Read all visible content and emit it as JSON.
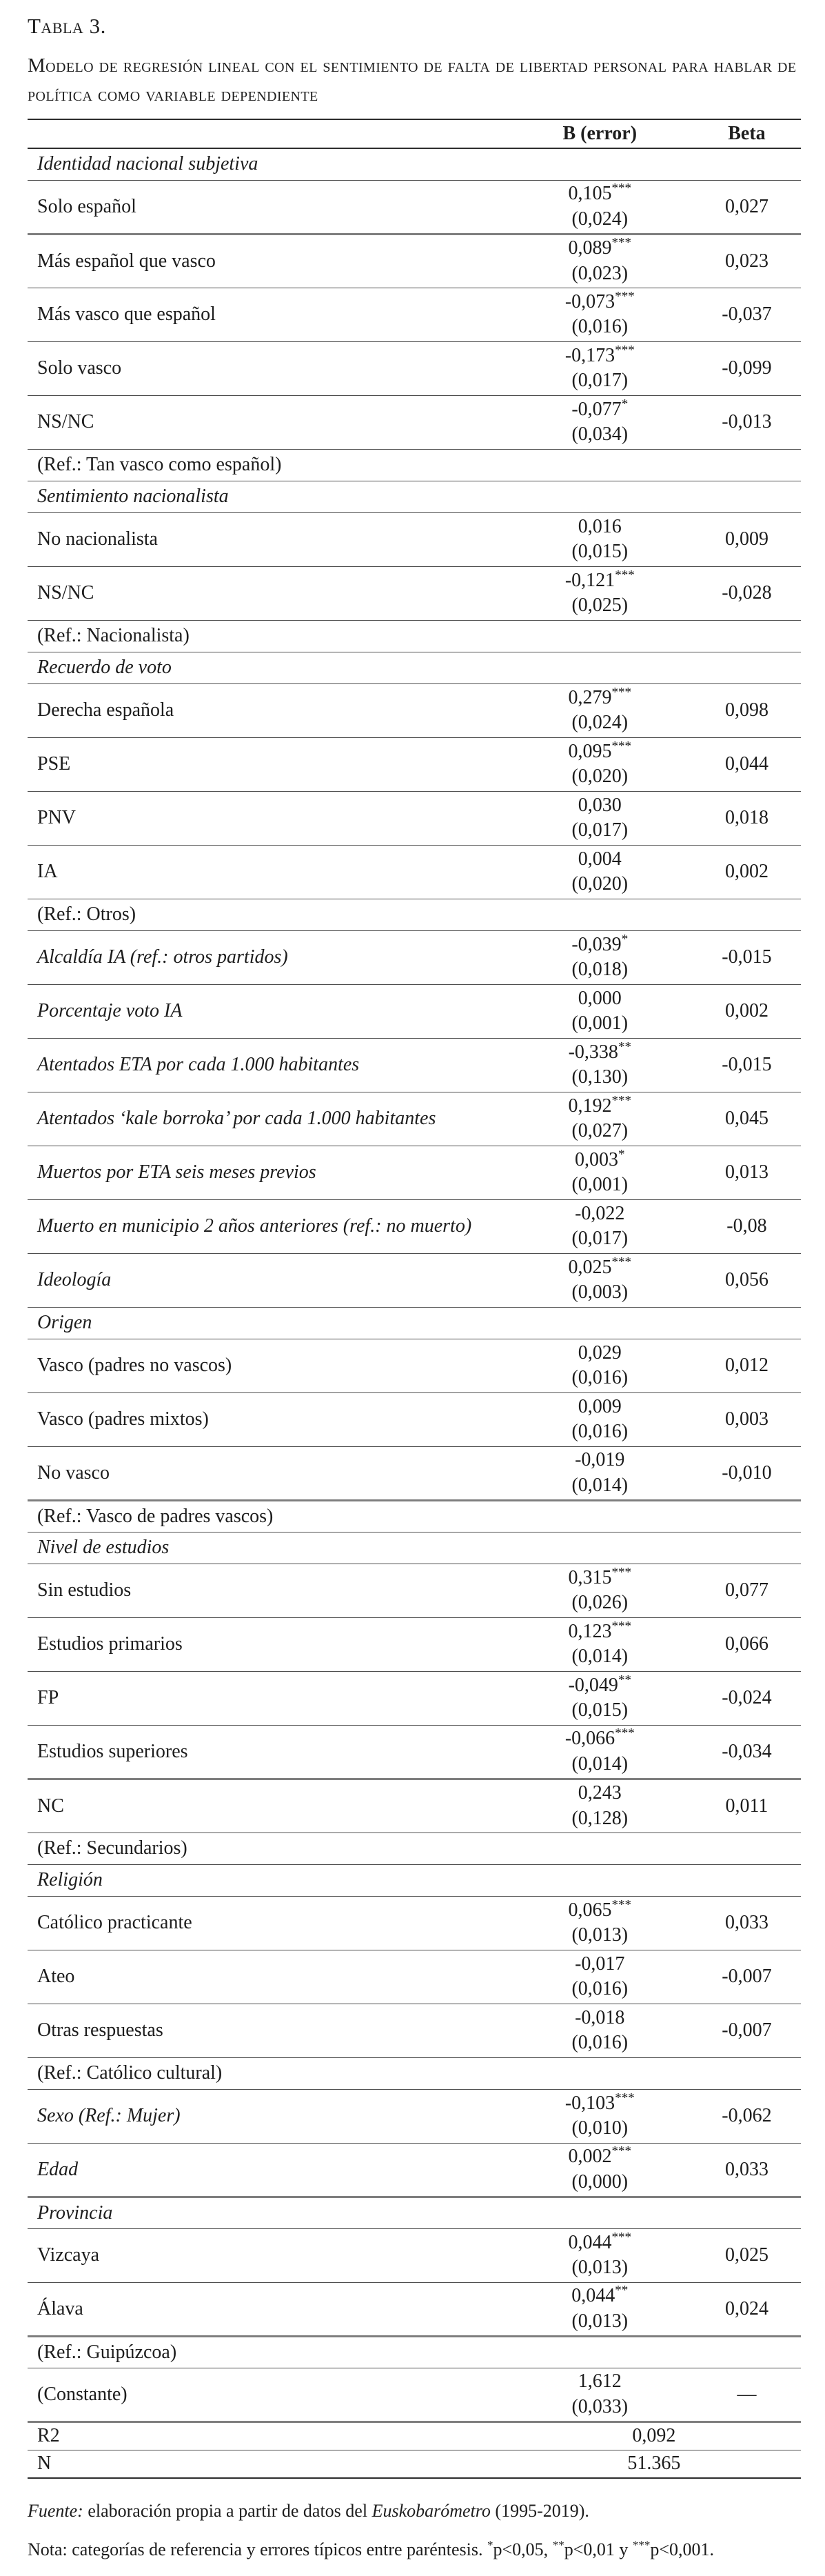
{
  "title": "Tabla 3.",
  "subtitle": "Modelo de regresión lineal con el sentimiento de falta de libertad personal para hablar de política como variable dependiente",
  "columns": {
    "b": "B (error)",
    "beta": "Beta"
  },
  "rows": [
    {
      "type": "section",
      "label": "Identidad nacional subjetiva"
    },
    {
      "type": "data",
      "thick": true,
      "label": "Solo español",
      "b": "0,105",
      "stars": "***",
      "err": "(0,024)",
      "beta": "0,027"
    },
    {
      "type": "data",
      "label": "Más español que vasco",
      "b": "0,089",
      "stars": "***",
      "err": "(0,023)",
      "beta": "0,023"
    },
    {
      "type": "data",
      "label": "Más vasco que español",
      "b": "-0,073",
      "stars": "***",
      "err": "(0,016)",
      "beta": "-0,037"
    },
    {
      "type": "data",
      "label": "Solo vasco",
      "b": "-0,173",
      "stars": "***",
      "err": "(0,017)",
      "beta": "-0,099"
    },
    {
      "type": "data",
      "label": "NS/NC",
      "b": "-0,077",
      "stars": "*",
      "err": "(0,034)",
      "beta": "-0,013"
    },
    {
      "type": "ref",
      "label": "(Ref.: Tan vasco como español)"
    },
    {
      "type": "section",
      "label": "Sentimiento nacionalista"
    },
    {
      "type": "data",
      "label": "No nacionalista",
      "b": "0,016",
      "stars": "",
      "err": "(0,015)",
      "beta": "0,009"
    },
    {
      "type": "data",
      "label": "NS/NC",
      "b": "-0,121",
      "stars": "***",
      "err": "(0,025)",
      "beta": "-0,028"
    },
    {
      "type": "ref",
      "label": "(Ref.: Nacionalista)"
    },
    {
      "type": "section",
      "label": "Recuerdo de voto"
    },
    {
      "type": "data",
      "label": "Derecha española",
      "b": "0,279",
      "stars": "***",
      "err": "(0,024)",
      "beta": "0,098"
    },
    {
      "type": "data",
      "label": "PSE",
      "b": "0,095",
      "stars": "***",
      "err": "(0,020)",
      "beta": "0,044"
    },
    {
      "type": "data",
      "label": "PNV",
      "b": "0,030",
      "stars": "",
      "err": "(0,017)",
      "beta": "0,018"
    },
    {
      "type": "data",
      "label": "IA",
      "b": "0,004",
      "stars": "",
      "err": "(0,020)",
      "beta": "0,002"
    },
    {
      "type": "ref",
      "label": "(Ref.: Otros)"
    },
    {
      "type": "data",
      "italic": true,
      "label": "Alcaldía IA (ref.: otros partidos)",
      "b": "-0,039",
      "stars": "*",
      "err": "(0,018)",
      "beta": "-0,015"
    },
    {
      "type": "data",
      "italic": true,
      "label": "Porcentaje voto IA",
      "b": "0,000",
      "stars": "",
      "err": "(0,001)",
      "beta": "0,002"
    },
    {
      "type": "data",
      "italic": true,
      "label": "Atentados ETA por cada 1.000 habitantes",
      "b": "-0,338",
      "stars": "**",
      "err": "(0,130)",
      "beta": "-0,015"
    },
    {
      "type": "data",
      "italic": true,
      "label": "Atentados ‘kale borroka’ por cada 1.000 habitantes",
      "b": "0,192",
      "stars": "***",
      "err": "(0,027)",
      "beta": "0,045"
    },
    {
      "type": "data",
      "italic": true,
      "label": "Muertos por ETA seis meses previos",
      "b": "0,003",
      "stars": "*",
      "err": "(0,001)",
      "beta": "0,013"
    },
    {
      "type": "data",
      "italic": true,
      "label": "Muerto en municipio 2 años anteriores (ref.: no muerto)",
      "b": "-0,022",
      "stars": "",
      "err": "(0,017)",
      "beta": "-0,08"
    },
    {
      "type": "data",
      "italic": true,
      "label": "Ideología",
      "b": "0,025",
      "stars": "***",
      "err": "(0,003)",
      "beta": "0,056"
    },
    {
      "type": "section",
      "label": "Origen"
    },
    {
      "type": "data",
      "label": "Vasco (padres no vascos)",
      "b": "0,029",
      "stars": "",
      "err": "(0,016)",
      "beta": "0,012"
    },
    {
      "type": "data",
      "label": "Vasco (padres mixtos)",
      "b": "0,009",
      "stars": "",
      "err": "(0,016)",
      "beta": "0,003"
    },
    {
      "type": "data",
      "thick": true,
      "label": "No vasco",
      "b": "-0,019",
      "stars": "",
      "err": "(0,014)",
      "beta": "-0,010"
    },
    {
      "type": "ref",
      "label": "(Ref.: Vasco de padres vascos)"
    },
    {
      "type": "section",
      "label": "Nivel de estudios"
    },
    {
      "type": "data",
      "label": "Sin estudios",
      "b": "0,315",
      "stars": "***",
      "err": "(0,026)",
      "beta": "0,077"
    },
    {
      "type": "data",
      "label": "Estudios primarios",
      "b": "0,123",
      "stars": "***",
      "err": "(0,014)",
      "beta": "0,066"
    },
    {
      "type": "data",
      "label": "FP",
      "b": "-0,049",
      "stars": "**",
      "err": "(0,015)",
      "beta": "-0,024"
    },
    {
      "type": "data",
      "thick": true,
      "label": "Estudios superiores",
      "b": "-0,066",
      "stars": "***",
      "err": "(0,014)",
      "beta": "-0,034"
    },
    {
      "type": "data",
      "label": "NC",
      "b": "0,243",
      "stars": "",
      "err": "(0,128)",
      "beta": "0,011"
    },
    {
      "type": "ref",
      "label": "(Ref.: Secundarios)"
    },
    {
      "type": "section",
      "label": "Religión"
    },
    {
      "type": "data",
      "label": "Católico practicante",
      "b": "0,065",
      "stars": "***",
      "err": "(0,013)",
      "beta": "0,033"
    },
    {
      "type": "data",
      "label": "Ateo",
      "b": "-0,017",
      "stars": "",
      "err": "(0,016)",
      "beta": "-0,007"
    },
    {
      "type": "data",
      "label": "Otras respuestas",
      "b": "-0,018",
      "stars": "",
      "err": "(0,016)",
      "beta": "-0,007"
    },
    {
      "type": "ref",
      "label": "(Ref.: Católico cultural)"
    },
    {
      "type": "data",
      "italic": true,
      "label": "Sexo (Ref.: Mujer)",
      "b": "-0,103",
      "stars": "***",
      "err": "(0,010)",
      "beta": "-0,062"
    },
    {
      "type": "data",
      "italic": true,
      "thick": true,
      "label": "Edad",
      "b": "0,002",
      "stars": "***",
      "err": "(0,000)",
      "beta": "0,033"
    },
    {
      "type": "section",
      "label": "Provincia"
    },
    {
      "type": "data",
      "label": "Vizcaya",
      "b": "0,044",
      "stars": "***",
      "err": "(0,013)",
      "beta": "0,025"
    },
    {
      "type": "data",
      "thick": true,
      "label": "Álava",
      "b": "0,044",
      "stars": "**",
      "err": "(0,013)",
      "beta": "0,024"
    },
    {
      "type": "ref",
      "label": "(Ref.: Guipúzcoa)"
    },
    {
      "type": "data",
      "thick": true,
      "label": "(Constante)",
      "b": "1,612",
      "stars": "",
      "err": "(0,033)",
      "beta": "—"
    },
    {
      "type": "merged",
      "label": "R2",
      "value": "0,092"
    },
    {
      "type": "merged",
      "label": "N",
      "value": "51.365"
    }
  ],
  "footer": {
    "fuente_label": "Fuente:",
    "fuente_text": " elaboración propia a partir de datos del ",
    "fuente_source": "Euskobarómetro",
    "fuente_tail": " (1995-2019).",
    "nota_prefix": "Nota: categorías de referencia y errores típicos entre paréntesis. ",
    "star1": "*",
    "seg1": "p<0,05, ",
    "star2": "**",
    "seg2": "p<0,01 y ",
    "star3": "***",
    "seg3": "p<0,001."
  }
}
